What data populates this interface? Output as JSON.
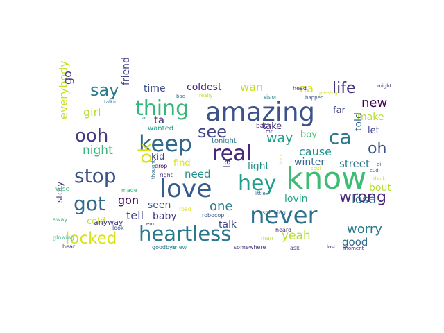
{
  "words": [
    {
      "text": "know",
      "color": "#3fbc73"
    },
    {
      "text": "amazing",
      "color": "#3b528b"
    },
    {
      "text": "love",
      "color": "#365c8d"
    },
    {
      "text": "never",
      "color": "#2c728e"
    },
    {
      "text": "heartless",
      "color": "#2a788e"
    },
    {
      "text": "keep",
      "color": "#31688e"
    },
    {
      "text": "stop",
      "color": "#3b528b"
    },
    {
      "text": "hey",
      "color": "#1f9e89"
    },
    {
      "text": "real",
      "color": "#482878"
    },
    {
      "text": "thing",
      "color": "#35b779"
    },
    {
      "text": "got",
      "color": "#31688e"
    },
    {
      "text": "ooh",
      "color": "#443983"
    },
    {
      "text": "locked",
      "color": "#d8e219"
    },
    {
      "text": "see",
      "color": "#404688"
    },
    {
      "text": "ca",
      "color": "#2a788e"
    },
    {
      "text": "wrong",
      "color": "#482878"
    },
    {
      "text": "say",
      "color": "#287c8e"
    },
    {
      "text": "ok",
      "color": "#d8e219"
    },
    {
      "text": "life",
      "color": "#46327e"
    },
    {
      "text": "oh",
      "color": "#3b528b"
    },
    {
      "text": "yeah",
      "color": "#b5de2b"
    },
    {
      "text": "way",
      "color": "#1f9e89"
    },
    {
      "text": "new",
      "color": "#440154"
    },
    {
      "text": "one",
      "color": "#277f8e"
    },
    {
      "text": "everybody",
      "color": "#c8e020"
    },
    {
      "text": "worry",
      "color": "#2a788e"
    },
    {
      "text": "lose",
      "color": "#2c728e"
    },
    {
      "text": "street",
      "color": "#2a788e"
    },
    {
      "text": "night",
      "color": "#35b779"
    },
    {
      "text": "cause",
      "color": "#21918c"
    },
    {
      "text": "wan",
      "color": "#c8e020"
    },
    {
      "text": "girl",
      "color": "#b5de2b"
    },
    {
      "text": "need",
      "color": "#21918c"
    },
    {
      "text": "na",
      "color": "#d8e219"
    },
    {
      "text": "tell",
      "color": "#414487"
    },
    {
      "text": "good",
      "color": "#31688e"
    },
    {
      "text": "talk",
      "color": "#404688"
    },
    {
      "text": "gon",
      "color": "#440154"
    },
    {
      "text": "time",
      "color": "#3b528b"
    },
    {
      "text": "coldest",
      "color": "#482878"
    },
    {
      "text": "make",
      "color": "#b5de2b"
    },
    {
      "text": "friend",
      "color": "#414487"
    },
    {
      "text": "told",
      "color": "#31688e"
    },
    {
      "text": "go",
      "color": "#443983"
    },
    {
      "text": "lovin",
      "color": "#1fa088"
    },
    {
      "text": "seen",
      "color": "#365c8d"
    },
    {
      "text": "baby",
      "color": "#443983"
    },
    {
      "text": "light",
      "color": "#21918c"
    },
    {
      "text": "winter",
      "color": "#31688e"
    },
    {
      "text": "find",
      "color": "#d8e219"
    },
    {
      "text": "bout",
      "color": "#b5de2b"
    },
    {
      "text": "la",
      "color": "#443983"
    },
    {
      "text": "boy",
      "color": "#44bf70"
    },
    {
      "text": "take",
      "color": "#46327e"
    },
    {
      "text": "far",
      "color": "#404688"
    },
    {
      "text": "let",
      "color": "#414487"
    },
    {
      "text": "kid",
      "color": "#404688"
    },
    {
      "text": "cold",
      "color": "#c8e020"
    },
    {
      "text": "ta",
      "color": "#46327e"
    },
    {
      "text": "story",
      "color": "#443983"
    },
    {
      "text": "anyway",
      "color": "#443983"
    },
    {
      "text": "tonight",
      "color": "#2a788e"
    },
    {
      "text": "wanted",
      "color": "#1f9e89"
    },
    {
      "text": "back",
      "color": "#482878"
    },
    {
      "text": "wise",
      "color": "#3fbc73"
    },
    {
      "text": "made",
      "color": "#35b779"
    },
    {
      "text": "away",
      "color": "#3fbc73"
    },
    {
      "text": "look",
      "color": "#3b528b"
    },
    {
      "text": "road",
      "color": "#d8e219"
    },
    {
      "text": "robocop",
      "color": "#3b528b"
    },
    {
      "text": "spinning",
      "color": "#31688e"
    },
    {
      "text": "drop",
      "color": "#440154"
    },
    {
      "text": "right",
      "color": "#482878"
    },
    {
      "text": "glowing",
      "color": "#35b779"
    },
    {
      "text": "hear",
      "color": "#46327e"
    },
    {
      "text": "goodbye",
      "color": "#2c728e"
    },
    {
      "text": "knew",
      "color": "#21918c"
    },
    {
      "text": "somewhere",
      "color": "#46327e"
    },
    {
      "text": "man",
      "color": "#b5de2b"
    },
    {
      "text": "heard",
      "color": "#482878"
    },
    {
      "text": "ask",
      "color": "#443983"
    },
    {
      "text": "lost",
      "color": "#482878"
    },
    {
      "text": "moment",
      "color": "#482878"
    },
    {
      "text": "cudi",
      "color": "#2c728e"
    },
    {
      "text": "think",
      "color": "#b5de2b"
    },
    {
      "text": "soul",
      "color": "#d8e219"
    },
    {
      "text": "little",
      "color": "#31688e"
    },
    {
      "text": "mr",
      "color": "#482878"
    },
    {
      "text": "talkin",
      "color": "#2a788e"
    },
    {
      "text": "ai",
      "color": "#2a788e"
    },
    {
      "text": "bad",
      "color": "#2a788e"
    },
    {
      "text": "really",
      "color": "#b5de2b"
    },
    {
      "text": "vision",
      "color": "#26828e"
    },
    {
      "text": "head",
      "color": "#46327e"
    },
    {
      "text": "happen",
      "color": "#3b528b"
    },
    {
      "text": "passing",
      "color": "#d8e219"
    },
    {
      "text": "might",
      "color": "#482878"
    },
    {
      "text": "ei",
      "color": "#404688"
    },
    {
      "text": "thought",
      "color": "#31688e"
    },
    {
      "text": "em",
      "color": "#443983"
    },
    {
      "text": "turn",
      "color": "#d8e219"
    }
  ]
}
